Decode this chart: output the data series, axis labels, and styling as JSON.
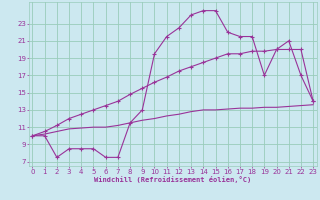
{
  "background_color": "#cce8f0",
  "grid_color": "#99ccbb",
  "line_color": "#993399",
  "xlabel": "Windchill (Refroidissement éolien,°C)",
  "x_hours": [
    0,
    1,
    2,
    3,
    4,
    5,
    6,
    7,
    8,
    9,
    10,
    11,
    12,
    13,
    14,
    15,
    16,
    17,
    18,
    19,
    20,
    21,
    22,
    23
  ],
  "curve1_y": [
    10.0,
    10.0,
    7.5,
    8.5,
    8.5,
    8.5,
    7.5,
    7.5,
    11.5,
    13.0,
    19.5,
    21.5,
    22.5,
    24.0,
    24.5,
    24.5,
    22.0,
    21.5,
    21.5,
    17.0,
    20.0,
    21.0,
    17.0,
    14.0
  ],
  "curve2_y": [
    10.0,
    10.5,
    11.2,
    12.0,
    12.5,
    13.0,
    13.5,
    14.0,
    14.8,
    15.5,
    16.2,
    16.8,
    17.5,
    18.0,
    18.5,
    19.0,
    19.5,
    19.5,
    19.8,
    19.8,
    20.0,
    20.0,
    20.0,
    14.0
  ],
  "curve3_y": [
    10.0,
    10.2,
    10.5,
    10.8,
    10.9,
    11.0,
    11.0,
    11.2,
    11.5,
    11.8,
    12.0,
    12.3,
    12.5,
    12.8,
    13.0,
    13.0,
    13.1,
    13.2,
    13.2,
    13.3,
    13.3,
    13.4,
    13.5,
    13.6
  ],
  "ylim": [
    6.5,
    25.5
  ],
  "yticks": [
    7,
    9,
    11,
    13,
    15,
    17,
    19,
    21,
    23
  ],
  "xlim": [
    -0.3,
    23.3
  ],
  "xticks": [
    0,
    1,
    2,
    3,
    4,
    5,
    6,
    7,
    8,
    9,
    10,
    11,
    12,
    13,
    14,
    15,
    16,
    17,
    18,
    19,
    20,
    21,
    22,
    23
  ]
}
